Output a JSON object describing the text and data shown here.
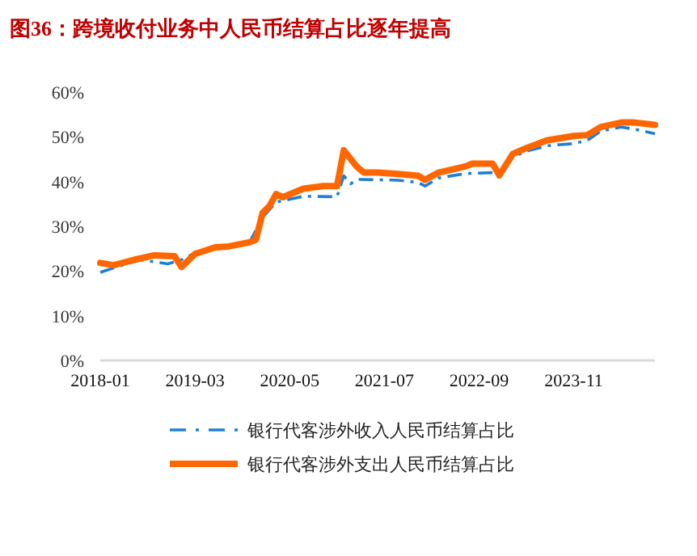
{
  "chart_data": {
    "type": "line",
    "title": "图36：跨境收付业务中人民币结算占比逐年提高",
    "xlim": [
      "2018-01",
      "2024-11"
    ],
    "xticks": [
      "2018-01",
      "2019-03",
      "2020-05",
      "2021-07",
      "2022-09",
      "2023-11"
    ],
    "ylim": [
      0,
      60
    ],
    "yticks": [
      {
        "value": 0,
        "label": "0%"
      },
      {
        "value": 10,
        "label": "10%"
      },
      {
        "value": 20,
        "label": "20%"
      },
      {
        "value": 30,
        "label": "30%"
      },
      {
        "value": 40,
        "label": "40%"
      },
      {
        "value": 50,
        "label": "50%"
      },
      {
        "value": 60,
        "label": "60%"
      }
    ],
    "grid": false,
    "legend": "bottom",
    "marker": "none",
    "series": [
      {
        "name": "银行代客涉外收入人民币结算占比",
        "color": "#1f7fd6",
        "line_style": "dashed",
        "x": [
          "2018-01",
          "2018-04",
          "2018-07",
          "2018-11",
          "2019-01",
          "2019-03",
          "2019-11",
          "2020-01",
          "2020-03",
          "2020-07",
          "2020-12",
          "2021-01",
          "2021-02",
          "2021-03",
          "2021-06",
          "2021-09",
          "2021-12",
          "2022-01",
          "2022-03",
          "2022-07",
          "2022-11",
          "2022-12",
          "2023-02",
          "2023-04",
          "2023-07",
          "2023-11",
          "2024-01",
          "2024-03",
          "2024-06",
          "2024-08",
          "2024-11"
        ],
        "values": [
          19.7,
          21.2,
          22.5,
          21.6,
          22.5,
          24,
          26.2,
          32,
          35.4,
          36.7,
          36.6,
          41.3,
          39.5,
          40.5,
          40.4,
          40.3,
          39.8,
          39,
          40.8,
          41.8,
          42,
          41.2,
          45.5,
          46.8,
          48,
          48.5,
          49.2,
          51.3,
          52.2,
          51.7,
          50.7
        ]
      },
      {
        "name": "银行代客涉外支出人民币结算占比",
        "color": "#ff6600",
        "line_style": "solid",
        "x": [
          "2018-01",
          "2018-03",
          "2018-06",
          "2018-09",
          "2018-12",
          "2019-01",
          "2019-03",
          "2019-06",
          "2019-08",
          "2019-11",
          "2019-12",
          "2020-01",
          "2020-02",
          "2020-03",
          "2020-04",
          "2020-07",
          "2020-10",
          "2020-12",
          "2021-01",
          "2021-03",
          "2021-04",
          "2021-06",
          "2021-09",
          "2021-12",
          "2022-01",
          "2022-03",
          "2022-07",
          "2022-08",
          "2022-11",
          "2022-12",
          "2023-02",
          "2023-04",
          "2023-07",
          "2023-11",
          "2024-01",
          "2024-03",
          "2024-06",
          "2024-08",
          "2024-11"
        ],
        "values": [
          21.8,
          21.3,
          22.5,
          23.5,
          23.3,
          20.9,
          23.8,
          25.3,
          25.5,
          26.4,
          27,
          33,
          34.5,
          37.2,
          36.5,
          38.4,
          39,
          39,
          47,
          43.2,
          42,
          42,
          41.7,
          41.3,
          40.4,
          42,
          43.4,
          44,
          44,
          41.4,
          46.2,
          47.5,
          49.2,
          50.2,
          50.4,
          52.2,
          53.2,
          53.2,
          52.7
        ]
      }
    ]
  }
}
